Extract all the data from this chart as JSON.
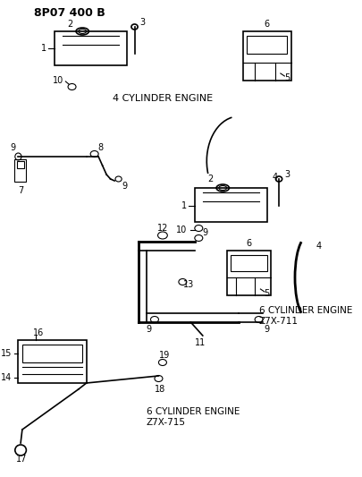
{
  "title": "8P07 400 B",
  "bg_color": "#ffffff",
  "line_color": "#000000",
  "text_color": "#000000",
  "fig_width": 4.05,
  "fig_height": 5.33,
  "dpi": 100,
  "labels": {
    "header": "8P07 400 B",
    "4cyl": "4 CYLINDER ENGINE",
    "6cyl_711": "6 CYLINDER ENGINE\nZ7X-711",
    "6cyl_715": "6 CYLINDER ENGINE\nZ7X-715"
  }
}
